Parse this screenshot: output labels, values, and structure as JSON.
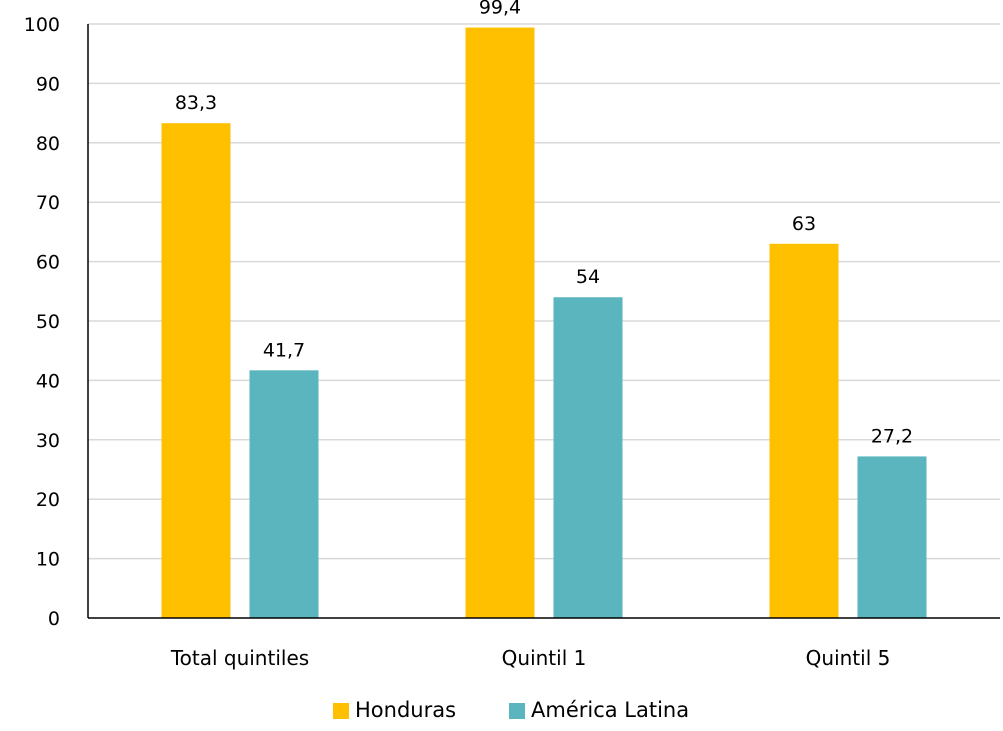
{
  "chart_data": {
    "type": "bar",
    "categories": [
      "Total quintiles",
      "Quintil 1",
      "Quintil 5"
    ],
    "series": [
      {
        "name": "Honduras",
        "values": [
          83.3,
          99.4,
          63
        ],
        "labels": [
          "83,3",
          "99,4",
          "63"
        ],
        "color": "#FFC000"
      },
      {
        "name": "América Latina",
        "values": [
          41.7,
          54,
          27.2
        ],
        "labels": [
          "41,7",
          "54",
          "27,2"
        ],
        "color": "#5BB5BF"
      }
    ],
    "yticks": [
      0,
      10,
      20,
      30,
      40,
      50,
      60,
      70,
      80,
      90,
      100
    ],
    "ylim": [
      0,
      100
    ],
    "grid": true,
    "legend_position": "bottom",
    "title": "",
    "xlabel": "",
    "ylabel": ""
  }
}
